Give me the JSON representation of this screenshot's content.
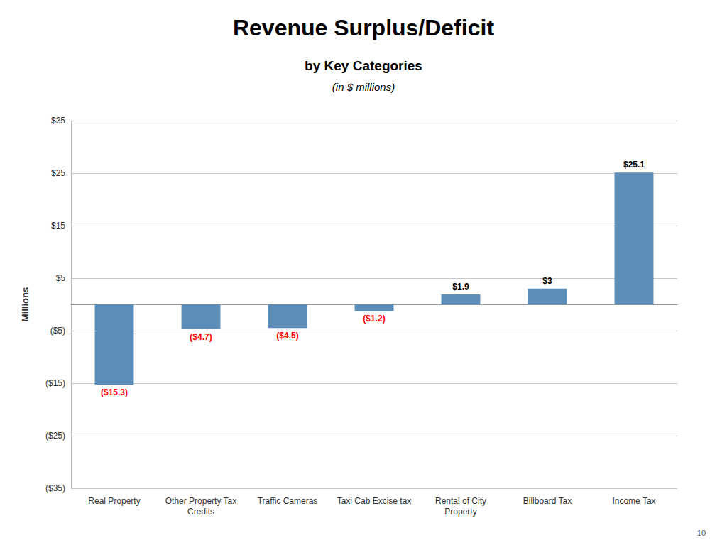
{
  "chart_data": {
    "type": "bar",
    "title": "Revenue Surplus/Deficit",
    "subtitle": [
      "by Key Categories",
      "(in $ millions)"
    ],
    "annotations": [
      "10"
    ],
    "ylabel": "Millions",
    "categories": [
      "Real Property",
      "Other Property Tax\nCredits",
      "Traffic Cameras",
      "Taxi Cab Excise tax",
      "Rental of City\nProperty",
      "Billboard Tax",
      "Income Tax"
    ],
    "values": [
      -15.3,
      -4.7,
      -4.5,
      -1.2,
      1.9,
      3.0,
      25.1
    ],
    "data_labels": true,
    "value_labels": [
      "($15.3)",
      "($4.7)",
      "($4.5)",
      "($1.2)",
      "$1.9",
      "$3",
      "$25.1"
    ],
    "value_label_colors": [
      "#FF0000",
      "#FF0000",
      "#FF0000",
      "#FF0000",
      "#000000",
      "#000000",
      "#000000"
    ],
    "color": "#5B8DB8",
    "ylim": [
      -35,
      35
    ],
    "yticks": [
      {
        "value": -35,
        "label": "($35)"
      },
      {
        "value": -25,
        "label": "($25)"
      },
      {
        "value": -15,
        "label": "($15)"
      },
      {
        "value": -5,
        "label": "($5)"
      },
      {
        "value": 5,
        "label": "$5"
      },
      {
        "value": 15,
        "label": "$15"
      },
      {
        "value": 25,
        "label": "$25"
      },
      {
        "value": 35,
        "label": "$35"
      }
    ],
    "grid": true
  }
}
